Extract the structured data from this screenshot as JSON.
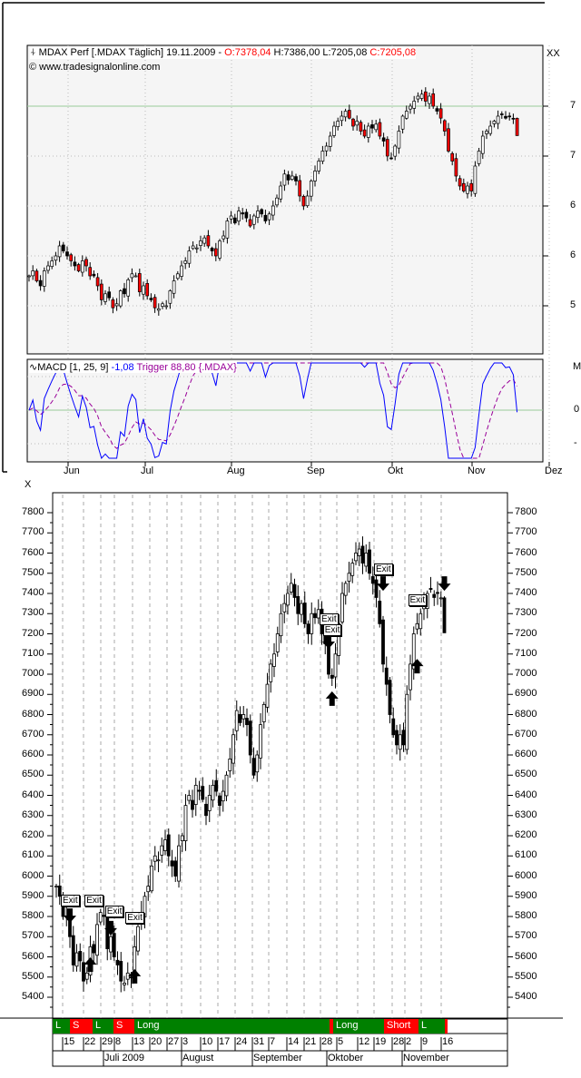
{
  "top_chart": {
    "legend_symbol": "candle-icon",
    "instrument": "MDAX Perf [.MDAX  Täglich]",
    "date": "19.11.2009 -",
    "open": "O:7378,04",
    "high": "H:7386,00",
    "low": "L:7205,08",
    "close": "C:7205,08",
    "copyright": "© www.tradesignalonline.com",
    "corner_label": "XX",
    "y_labels": [
      "7",
      "7",
      "6",
      "6",
      "5"
    ],
    "y_values": [
      7500,
      7000,
      6500,
      6000,
      5500
    ],
    "reference_line": 7500
  },
  "macd_panel": {
    "symbol": "indicator-icon",
    "name": "MACD [1, 25, 9]",
    "value": "-1,08",
    "trigger": "Trigger 88,80",
    "source": "{.MDAX}",
    "corner_label": "M",
    "y_labels": [
      "0",
      "-"
    ],
    "x_labels": [
      "Jun",
      "Jul",
      "Aug",
      "Sep",
      "Okt",
      "Nov",
      "Dez"
    ]
  },
  "gap_label": "X",
  "colors": {
    "up": "#ffffff",
    "down": "#000000",
    "down_strong": "#ff0000",
    "macd": "#0000ff",
    "trigger": "#990099",
    "grid_line": "#99cc99",
    "long": "#008000",
    "short": "#ff0000"
  },
  "chart_data": {
    "type": "candlestick",
    "title": "MDAX Perf [.MDAX Täglich]",
    "last_ohlc": {
      "open": 7378.04,
      "high": 7386.0,
      "low": 7205.08,
      "close": 7205.08
    },
    "prefix_close": [
      5800,
      5850,
      5750,
      5700,
      5850,
      5900,
      5950,
      6000,
      6100,
      6050,
      6000,
      5950,
      5900,
      5850
    ],
    "close": [
      5950,
      5900,
      5800,
      5800,
      5700,
      5560,
      5620,
      5580,
      5480,
      5520,
      5650,
      5620,
      5760,
      5820,
      5800,
      5640,
      5700,
      5600,
      5560,
      5480,
      5470,
      5520,
      5500,
      5650,
      5750,
      5820,
      5900,
      5950,
      6050,
      6100,
      6080,
      6150,
      6180,
      6100,
      6050,
      6000,
      6150,
      6200,
      6350,
      6400,
      6330,
      6450,
      6420,
      6380,
      6300,
      6400,
      6450,
      6420,
      6350,
      6420,
      6500,
      6580,
      6700,
      6820,
      6760,
      6800,
      6750,
      6600,
      6500,
      6600,
      6750,
      6850,
      6950,
      7050,
      7100,
      7200,
      7300,
      7350,
      7400,
      7450,
      7380,
      7300,
      7350,
      7250,
      7200,
      7300,
      7280,
      7320,
      7200,
      7150,
      7000,
      6980,
      7100,
      7250,
      7400,
      7450,
      7500,
      7550,
      7600,
      7620,
      7550,
      7600,
      7500,
      7450,
      7380,
      7250,
      7050,
      6950,
      6800,
      6700,
      6650,
      6700,
      6650,
      6900,
      7050,
      7200,
      7250,
      7300,
      7350,
      7400,
      7420,
      7380,
      7400,
      7378,
      7205
    ],
    "y_ticks": [
      5400,
      5500,
      5600,
      5700,
      5800,
      5900,
      6000,
      6100,
      6200,
      6300,
      6400,
      6500,
      6600,
      6700,
      6800,
      6900,
      7000,
      7100,
      7200,
      7300,
      7400,
      7500,
      7600,
      7700,
      7800
    ],
    "ylim": [
      5400,
      7800
    ],
    "exit_labels": [
      {
        "i": 4,
        "price": 5876,
        "text": "Exit"
      },
      {
        "i": 11,
        "price": 5876,
        "text": "Exit"
      },
      {
        "i": 17,
        "price": 5822,
        "text": "Exit"
      },
      {
        "i": 23,
        "price": 5791,
        "text": "Exit"
      },
      {
        "i": 80,
        "price": 7270,
        "text": "Exit"
      },
      {
        "i": 81,
        "price": 7216,
        "text": "Exit"
      },
      {
        "i": 96,
        "price": 7517,
        "text": "Exit"
      },
      {
        "i": 106,
        "price": 7364,
        "text": "Exit"
      }
    ],
    "arrows": [
      {
        "i": 4,
        "price": 5840,
        "dir": "down"
      },
      {
        "i": 10,
        "price": 5598,
        "dir": "up"
      },
      {
        "i": 16,
        "price": 5778,
        "dir": "down"
      },
      {
        "i": 23,
        "price": 5540,
        "dir": "up"
      },
      {
        "i": 80,
        "price": 7198,
        "dir": "down"
      },
      {
        "i": 81,
        "price": 6915,
        "dir": "up"
      },
      {
        "i": 96,
        "price": 7485,
        "dir": "down"
      },
      {
        "i": 106,
        "price": 7076,
        "dir": "up"
      },
      {
        "i": 114,
        "price": 7485,
        "dir": "down"
      }
    ],
    "signals": [
      {
        "label": "L",
        "type": "long"
      },
      {
        "label": "S",
        "type": "short"
      },
      {
        "label": "L",
        "type": "long"
      },
      {
        "label": "S",
        "type": "short"
      },
      {
        "label": "Long",
        "type": "long"
      },
      {
        "label": "",
        "type": "short"
      },
      {
        "label": "Long",
        "type": "long"
      },
      {
        "label": "Short",
        "type": "short"
      },
      {
        "label": "L",
        "type": "long"
      },
      {
        "label": "",
        "type": "short"
      }
    ],
    "day_labels": [
      "15",
      "22",
      "29",
      "8",
      "13",
      "20",
      "27",
      "3",
      "10",
      "17",
      "24",
      "31",
      "7",
      "14",
      "21",
      "28",
      "5",
      "12",
      "19",
      "28",
      "2",
      "9",
      "16"
    ],
    "month_labels": [
      "",
      "Juli 2009",
      "August",
      "September",
      "Oktober",
      "November"
    ]
  }
}
